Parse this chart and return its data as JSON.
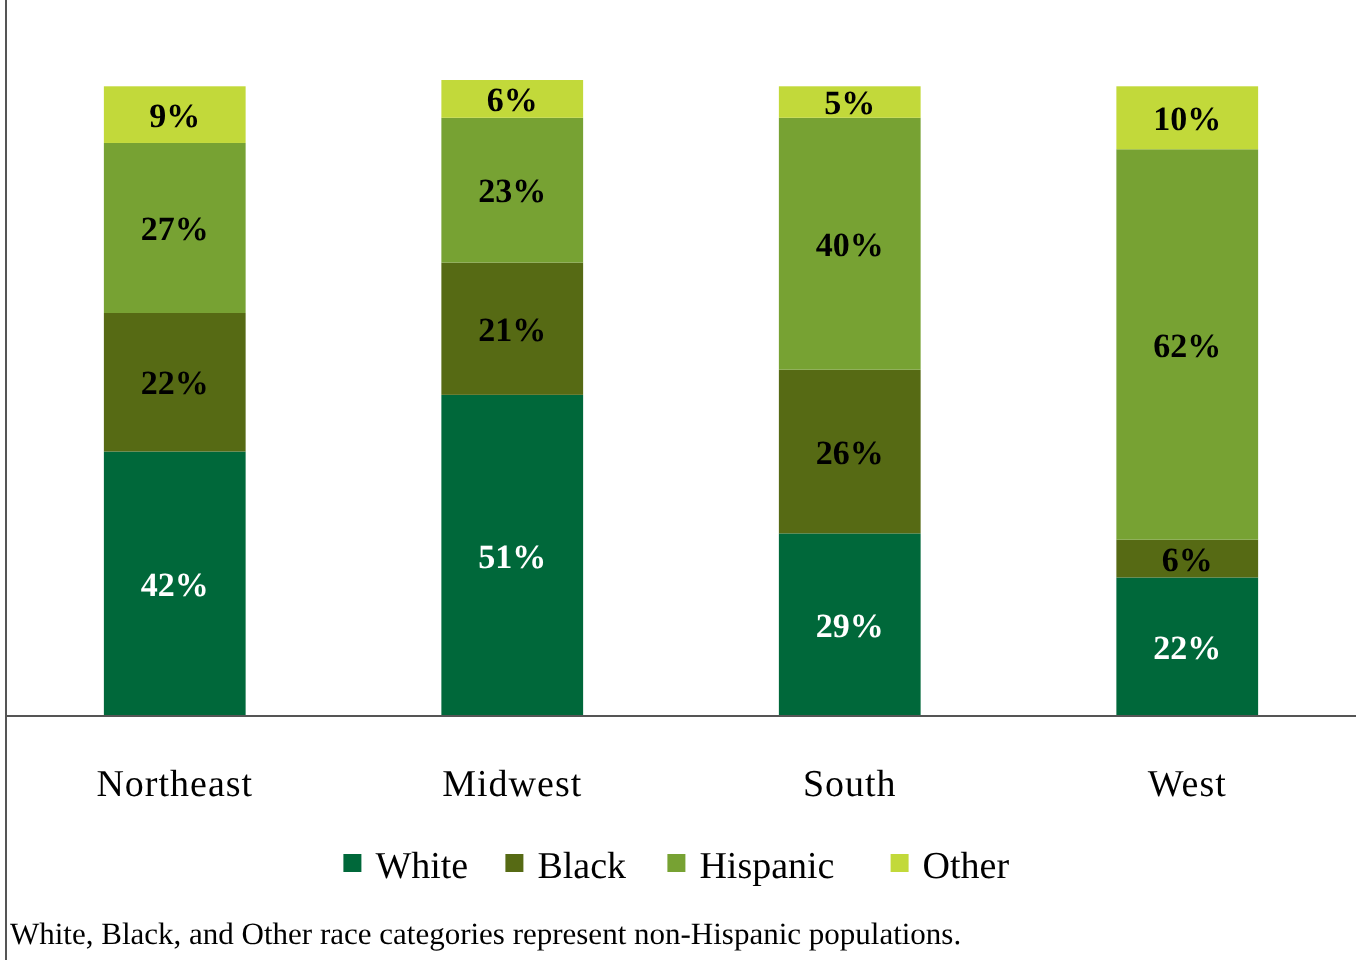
{
  "chart_data": {
    "type": "bar",
    "stacked": true,
    "legend": "bottom",
    "categories": [
      "Northeast",
      "Midwest",
      "South",
      "West"
    ],
    "series": [
      {
        "name": "White",
        "color": "#00683a",
        "values": [
          42,
          51,
          29,
          22
        ],
        "value_labels": [
          "42%",
          "51%",
          "29%",
          "22%"
        ]
      },
      {
        "name": "Black",
        "color": "#566a14",
        "values": [
          22,
          21,
          26,
          6
        ],
        "value_labels": [
          "22%",
          "21%",
          "26%",
          "6%"
        ]
      },
      {
        "name": "Hispanic",
        "color": "#77a233",
        "values": [
          27,
          23,
          40,
          62
        ],
        "value_labels": [
          "27%",
          "23%",
          "40%",
          "62%"
        ]
      },
      {
        "name": "Other",
        "color": "#c2d93a",
        "values": [
          9,
          6,
          5,
          10
        ],
        "value_labels": [
          "9%",
          "6%",
          "5%",
          "10%"
        ]
      }
    ],
    "annotations": [
      "White, Black, and Other race categories represent non-Hispanic populations."
    ]
  }
}
